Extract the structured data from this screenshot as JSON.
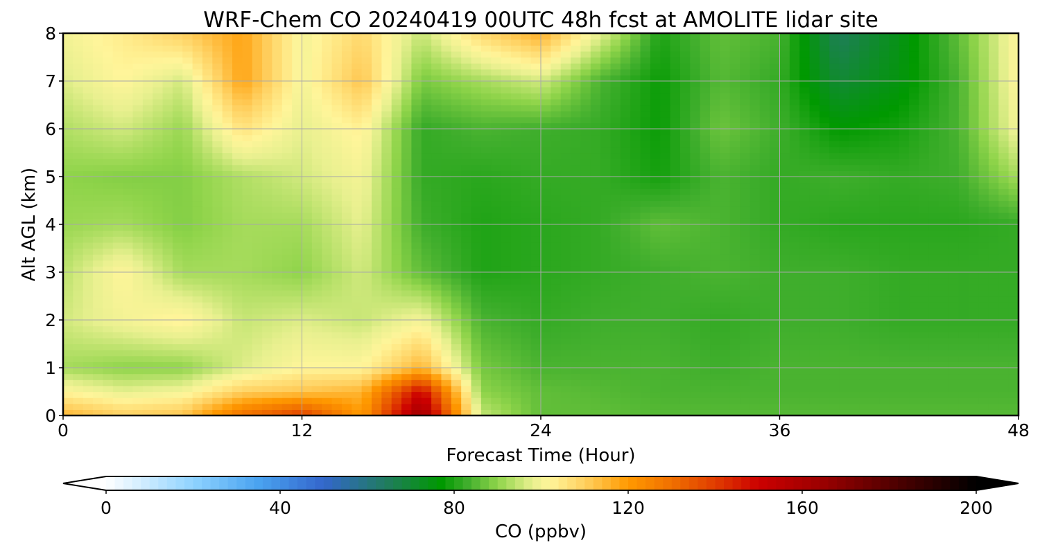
{
  "chart_data": {
    "type": "heatmap",
    "title": "WRF-Chem CO  20240419 00UTC 48h fcst at AMOLITE lidar site",
    "xlabel": "Forecast Time (Hour)",
    "ylabel": "Alt AGL (km)",
    "xlim": [
      0,
      48
    ],
    "ylim": [
      0,
      8
    ],
    "xticks": [
      0,
      12,
      24,
      36,
      48
    ],
    "yticks": [
      0,
      1,
      2,
      3,
      4,
      5,
      6,
      7,
      8
    ],
    "grid": true,
    "x": [
      0,
      3,
      6,
      9,
      12,
      15,
      18,
      21,
      24,
      27,
      30,
      33,
      36,
      39,
      42,
      45,
      48
    ],
    "y": [
      0,
      0.5,
      1,
      2,
      3,
      4,
      5,
      6,
      7,
      8
    ],
    "z": [
      [
        115,
        110,
        112,
        130,
        140,
        120,
        165,
        95,
        86,
        86,
        85,
        85,
        85,
        85,
        85,
        85,
        85
      ],
      [
        102,
        98,
        100,
        110,
        112,
        115,
        150,
        90,
        86,
        85,
        84,
        84,
        84,
        84,
        84,
        84,
        84
      ],
      [
        92,
        90,
        90,
        97,
        102,
        102,
        115,
        88,
        84,
        84,
        84,
        83,
        84,
        84,
        84,
        84,
        84
      ],
      [
        96,
        100,
        103,
        95,
        97,
        95,
        100,
        84,
        82,
        83,
        83,
        82,
        83,
        83,
        82,
        82,
        82
      ],
      [
        94,
        102,
        92,
        92,
        90,
        96,
        86,
        80,
        81,
        82,
        83,
        84,
        83,
        83,
        82,
        82,
        82
      ],
      [
        91,
        92,
        89,
        92,
        92,
        98,
        83,
        80,
        81,
        82,
        86,
        84,
        82,
        81,
        81,
        81,
        82
      ],
      [
        90,
        89,
        89,
        93,
        96,
        100,
        82,
        81,
        82,
        82,
        79,
        84,
        82,
        83,
        82,
        83,
        92
      ],
      [
        93,
        96,
        91,
        106,
        98,
        103,
        82,
        84,
        83,
        82,
        78,
        87,
        83,
        77,
        79,
        84,
        100
      ],
      [
        97,
        102,
        96,
        118,
        100,
        112,
        88,
        92,
        96,
        84,
        78,
        85,
        82,
        70,
        75,
        84,
        102
      ],
      [
        100,
        104,
        110,
        118,
        100,
        108,
        95,
        108,
        116,
        98,
        80,
        86,
        84,
        65,
        74,
        86,
        102
      ]
    ],
    "colorbar": {
      "label": "CO  (ppbv)",
      "min": 0,
      "max": 200,
      "ticks": [
        0,
        40,
        80,
        120,
        160,
        200
      ],
      "extend": "both"
    },
    "colormap": [
      [
        0,
        "#ffffff"
      ],
      [
        20,
        "#8fd3ff"
      ],
      [
        35,
        "#4aa3f0"
      ],
      [
        50,
        "#3366cc"
      ],
      [
        65,
        "#1f7d5a"
      ],
      [
        77,
        "#009900"
      ],
      [
        83,
        "#3fae2c"
      ],
      [
        90,
        "#8fd44a"
      ],
      [
        98,
        "#e8f08f"
      ],
      [
        102,
        "#fff59a"
      ],
      [
        110,
        "#ffd060"
      ],
      [
        120,
        "#ff9900"
      ],
      [
        130,
        "#f07000"
      ],
      [
        140,
        "#e03c00"
      ],
      [
        150,
        "#cc0000"
      ],
      [
        165,
        "#990000"
      ],
      [
        180,
        "#550000"
      ],
      [
        200,
        "#000000"
      ]
    ]
  }
}
